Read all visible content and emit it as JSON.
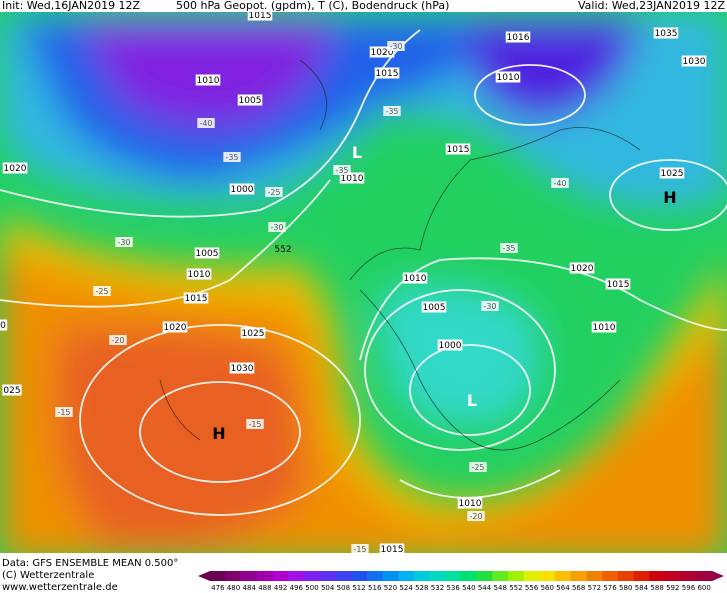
{
  "header": {
    "init": "Init: Wed,16JAN2019 12Z",
    "title": "500 hPa Geopot. (gpdm), T (C), Bodendruck (hPa)",
    "valid": "Valid: Wed,23JAN2019 12Z"
  },
  "map": {
    "pressure_labels": [
      "1015",
      "1020",
      "1015",
      "1010",
      "1005",
      "1016",
      "1035",
      "1030",
      "1010",
      "1015",
      "1010",
      "1000",
      "1020",
      "1025",
      "1005",
      "1010",
      "1015",
      "1020",
      "1025",
      "1030",
      "1010",
      "1020",
      "1015",
      "1005",
      "1010",
      "1000",
      "025",
      "1010",
      "1015",
      "0"
    ],
    "temperature_labels": [
      "-30",
      "-40",
      "-35",
      "-35",
      "-35",
      "-25",
      "-40",
      "-30",
      "-30",
      "-35",
      "-25",
      "-20",
      "-30",
      "-15",
      "-15",
      "-25",
      "-20",
      "-15"
    ],
    "geopotential_labels": [
      "552"
    ],
    "pressure_centers": [
      "H",
      "H",
      "L",
      "L"
    ]
  },
  "legend": {
    "ticks": [
      476,
      480,
      484,
      488,
      492,
      496,
      500,
      504,
      508,
      512,
      516,
      520,
      524,
      528,
      532,
      536,
      540,
      544,
      548,
      552,
      556,
      560,
      564,
      568,
      572,
      576,
      580,
      584,
      588,
      592,
      596,
      600
    ]
  },
  "footer": {
    "data": "Data: GFS ENSEMBLE MEAN 0.500°",
    "copyright": "(C) Wetterzentrale",
    "url": "www.wetterzentrale.de"
  }
}
